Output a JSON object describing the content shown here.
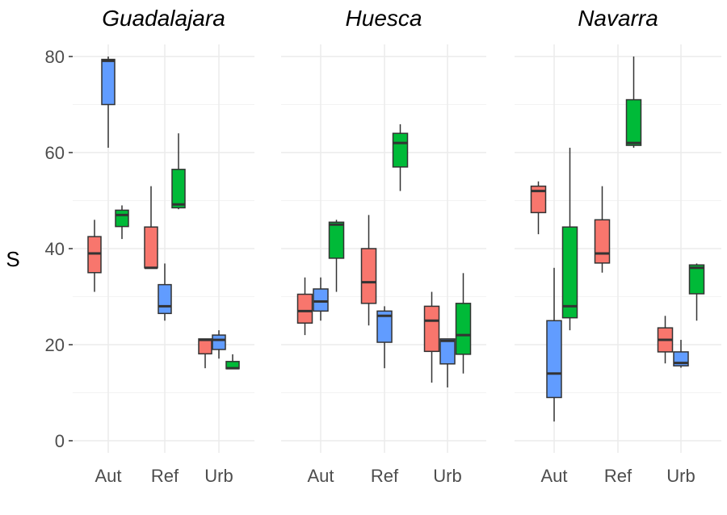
{
  "chart_data": {
    "type": "boxplot",
    "ylabel": "S",
    "xlabel": "",
    "ylim": [
      0,
      80
    ],
    "yticks": [
      "0",
      "20",
      "40",
      "60",
      "80"
    ],
    "categories": [
      "Aut",
      "Ref",
      "Urb"
    ],
    "group_colors": [
      "#F8766D",
      "#619CFF",
      "#00BA38"
    ],
    "grid": true,
    "legend": "none",
    "facets": [
      {
        "title": "Guadalajara",
        "boxes": {
          "Aut": [
            [
              31,
              35,
              39,
              42.5,
              46
            ],
            [
              61,
              70,
              79.1,
              79.4,
              80
            ],
            [
              42,
              44.6,
              47,
              48,
              49
            ]
          ],
          "Ref": [
            [
              36,
              36,
              36,
              44.5,
              53
            ],
            [
              25,
              26.5,
              28,
              32.5,
              36.9
            ],
            [
              48.2,
              48.5,
              49.2,
              56.5,
              64
            ]
          ],
          "Urb": [
            [
              15.1,
              18.1,
              21,
              21.2,
              21.2
            ],
            [
              17.1,
              19,
              21,
              22,
              23
            ],
            [
              15,
              15,
              15.1,
              16.5,
              18
            ]
          ]
        }
      },
      {
        "title": "Huesca",
        "boxes": {
          "Aut": [
            [
              22,
              24.5,
              27,
              30.5,
              34
            ],
            [
              25,
              27,
              29,
              31.6,
              34
            ],
            [
              31,
              38,
              45,
              45.5,
              46
            ]
          ],
          "Ref": [
            [
              24,
              28.6,
              33,
              40,
              47
            ],
            [
              15.1,
              20.5,
              26,
              27,
              28
            ],
            [
              52,
              57,
              62,
              64,
              65.9
            ]
          ],
          "Urb": [
            [
              12.1,
              18.6,
              25,
              28,
              31
            ],
            [
              11.1,
              16,
              20.8,
              21.2,
              21.2
            ],
            [
              14,
              18,
              22,
              28.6,
              34.9
            ]
          ]
        }
      },
      {
        "title": "Navarra",
        "boxes": {
          "Aut": [
            [
              43,
              47.5,
              52,
              53,
              54
            ],
            [
              4,
              9,
              14,
              25,
              36
            ],
            [
              23,
              25.6,
              28,
              44.5,
              61
            ]
          ],
          "Ref": [
            [
              35,
              37,
              39,
              46,
              53
            ],
            null,
            [
              61,
              61.5,
              62,
              71,
              80
            ]
          ],
          "Urb": [
            [
              16.1,
              18.5,
              21,
              23.5,
              26
            ],
            [
              15.2,
              15.6,
              16.2,
              18.5,
              21
            ],
            [
              25,
              30.6,
              36,
              36.6,
              36.9
            ]
          ]
        }
      }
    ]
  }
}
